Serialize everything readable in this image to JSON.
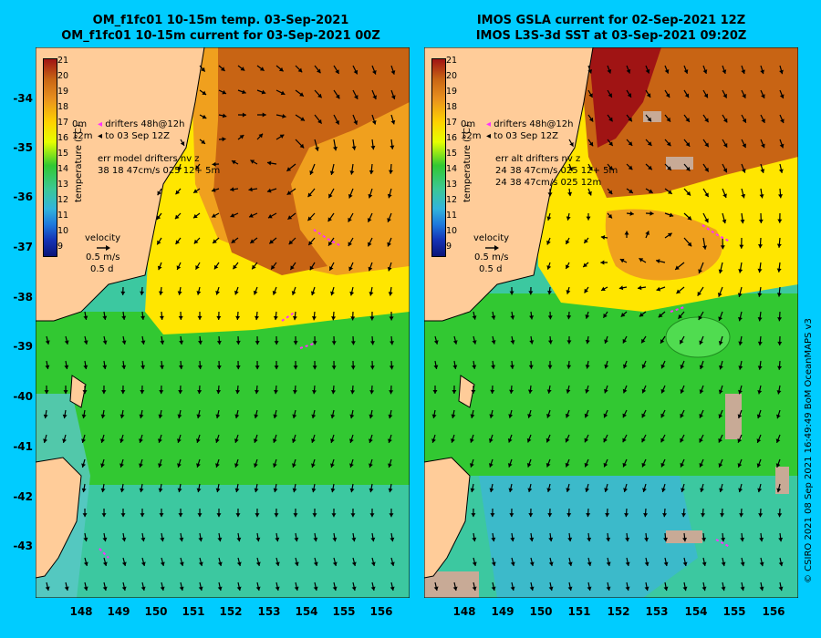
{
  "panels": [
    {
      "title_line1": "OM_f1fc01 10-15m temp. 03-Sep-2021",
      "title_line2": "OM_f1fc01 10-15m current for 03-Sep-2021 00Z",
      "legend": {
        "drifter_line1": "drifters 48h@12h",
        "drifter_line2": "to 03 Sep 12Z",
        "depth_0m": "0m",
        "depth_12m": "12m",
        "err_header": "err model drifters nv z",
        "err_values": "38 18 47cm/s 025 12+ 5m"
      }
    },
    {
      "title_line1": "IMOS GSLA current for 02-Sep-2021 12Z",
      "title_line2": "IMOS L3S-3d SST at 03-Sep-2021 09:20Z",
      "legend": {
        "drifter_line1": "drifters 48h@12h",
        "drifter_line2": "to 03 Sep 12Z",
        "depth_0m": "0m",
        "depth_12m": "12m",
        "err_header": "err alt drifters nv z",
        "err_values": "24 38 47cm/s 025 12+ 5m",
        "err_values2": "24 38 47cm/s 025 12m"
      }
    }
  ],
  "colorbar": {
    "label": "temperature (°C)",
    "ticks": [
      "21",
      "20",
      "19",
      "18",
      "17",
      "16",
      "15",
      "14",
      "13",
      "12",
      "11",
      "10",
      "9"
    ]
  },
  "velocity": {
    "label": "velocity",
    "speed": "0.5 m/s",
    "duration": "0.5 d"
  },
  "lat_ticks": [
    "-34",
    "-35",
    "-36",
    "-37",
    "-38",
    "-39",
    "-40",
    "-41",
    "-42",
    "-43"
  ],
  "lon_ticks": [
    "148",
    "149",
    "150",
    "151",
    "152",
    "153",
    "154",
    "155",
    "156"
  ],
  "credit": "© CSIRO 2021   08 Sep 2021 16:49:49 BoM OceanMAPS v3",
  "colors": {
    "background": "#00ccff",
    "land": "#ffcc99",
    "warm": "#c86414",
    "orange": "#f0a01e",
    "yellow": "#ffe600",
    "green": "#32c832",
    "teal": "#3cc8a0",
    "arrow": "#000000",
    "drifter": "#ff33ff"
  }
}
